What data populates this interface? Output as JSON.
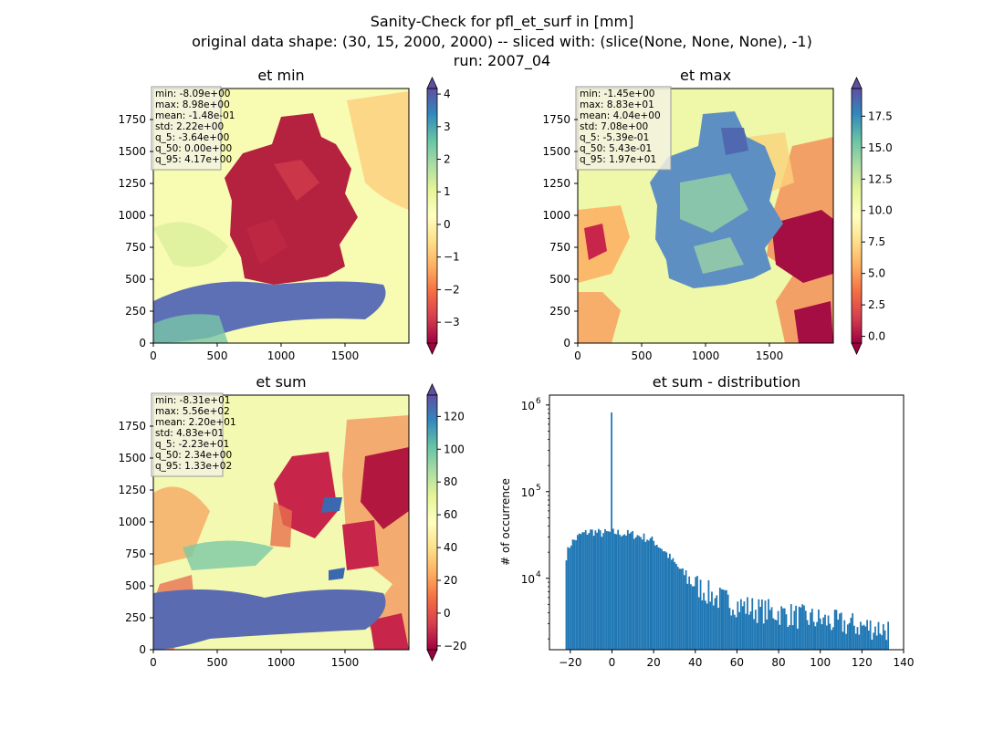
{
  "figure": {
    "title_line1": "Sanity-Check for pfl_et_surf in [mm]",
    "title_line2": "original data shape: (30, 15, 2000, 2000) -- sliced with: (slice(None, None, None), -1)",
    "title_line3": "run: 2007_04"
  },
  "colormap": {
    "name": "Spectral",
    "stops": [
      "#9e0142",
      "#d53e4f",
      "#f46d43",
      "#fdae61",
      "#fee08b",
      "#ffffbf",
      "#e6f598",
      "#abdda4",
      "#66c2a5",
      "#3288bd",
      "#5e4fa2"
    ]
  },
  "panels": {
    "et_min": {
      "title": "et min",
      "stats": [
        "min: -8.09e+00",
        "max: 8.98e+00",
        "mean: -1.48e-01",
        "std: 2.22e+00",
        "q_5: -3.64e+00",
        "q_50: 0.00e+00",
        "q_95: 4.17e+00"
      ],
      "colorbar": {
        "vmin": -3.64,
        "vmax": 4.17,
        "ticks": [
          -3,
          -2,
          -1,
          0,
          1,
          2,
          3,
          4
        ],
        "tick_labels": [
          "−3",
          "−2",
          "−1",
          "0",
          "1",
          "2",
          "3",
          "4"
        ]
      },
      "xticks": [
        "0",
        "500",
        "1000",
        "1500"
      ],
      "yticks": [
        "0",
        "250",
        "500",
        "750",
        "1000",
        "1250",
        "1500",
        "1750"
      ]
    },
    "et_max": {
      "title": "et max",
      "stats": [
        "min: -1.45e+00",
        "max: 8.83e+01",
        "mean: 4.04e+00",
        "std: 7.08e+00",
        "q_5: -5.39e-01",
        "q_50: 5.43e-01",
        "q_95: 1.97e+01"
      ],
      "colorbar": {
        "vmin": -0.539,
        "vmax": 19.7,
        "ticks": [
          0,
          2.5,
          5,
          7.5,
          10,
          12.5,
          15,
          17.5
        ],
        "tick_labels": [
          "0.0",
          "2.5",
          "5.0",
          "7.5",
          "10.0",
          "12.5",
          "15.0",
          "17.5"
        ]
      },
      "xticks": [
        "0",
        "500",
        "1000",
        "1500"
      ],
      "yticks": [
        "0",
        "250",
        "500",
        "750",
        "1000",
        "1250",
        "1500",
        "1750"
      ]
    },
    "et_sum": {
      "title": "et sum",
      "stats": [
        "min: -8.31e+01",
        "max: 5.56e+02",
        "mean: 2.20e+01",
        "std: 4.83e+01",
        "q_5: -2.23e+01",
        "q_50: 2.34e+00",
        "q_95: 1.33e+02"
      ],
      "colorbar": {
        "vmin": -22.3,
        "vmax": 133,
        "ticks": [
          -20,
          0,
          20,
          40,
          60,
          80,
          100,
          120
        ],
        "tick_labels": [
          "−20",
          "0",
          "20",
          "40",
          "60",
          "80",
          "100",
          "120"
        ]
      },
      "xticks": [
        "0",
        "500",
        "1000",
        "1500"
      ],
      "yticks": [
        "0",
        "250",
        "500",
        "750",
        "1000",
        "1250",
        "1500",
        "1750"
      ]
    }
  },
  "chart_data": {
    "type": "bar",
    "title": "et sum - distribution",
    "xlabel": "",
    "ylabel": "# of occurrence",
    "yscale": "log",
    "xlim": [
      -30,
      140
    ],
    "ylim": [
      1500,
      1300000
    ],
    "xticks": [
      -20,
      0,
      20,
      40,
      60,
      80,
      100,
      120,
      140
    ],
    "xtick_labels": [
      "−20",
      "0",
      "20",
      "40",
      "60",
      "80",
      "100",
      "120",
      "140"
    ],
    "ytick_labels": [
      "10",
      "10",
      "10"
    ],
    "ytick_exponents": [
      "4",
      "5",
      "6"
    ],
    "ytick_values": [
      10000,
      100000,
      1000000
    ],
    "bar_color": "#1f77b4",
    "bin_range": [
      -22.3,
      133
    ],
    "bins": 200,
    "spike": {
      "x": 0,
      "value": 820000
    },
    "envelope": [
      [
        -22.3,
        17000
      ],
      [
        -20,
        25000
      ],
      [
        -15,
        32000
      ],
      [
        -10,
        35000
      ],
      [
        -5,
        33000
      ],
      [
        0,
        34000
      ],
      [
        5,
        33000
      ],
      [
        10,
        32000
      ],
      [
        15,
        30000
      ],
      [
        20,
        27000
      ],
      [
        25,
        21000
      ],
      [
        30,
        15000
      ],
      [
        35,
        11000
      ],
      [
        40,
        8500
      ],
      [
        45,
        7000
      ],
      [
        50,
        6000
      ],
      [
        60,
        5000
      ],
      [
        70,
        4300
      ],
      [
        80,
        4000
      ],
      [
        90,
        3600
      ],
      [
        100,
        3300
      ],
      [
        110,
        3000
      ],
      [
        120,
        2800
      ],
      [
        133,
        2600
      ]
    ]
  }
}
